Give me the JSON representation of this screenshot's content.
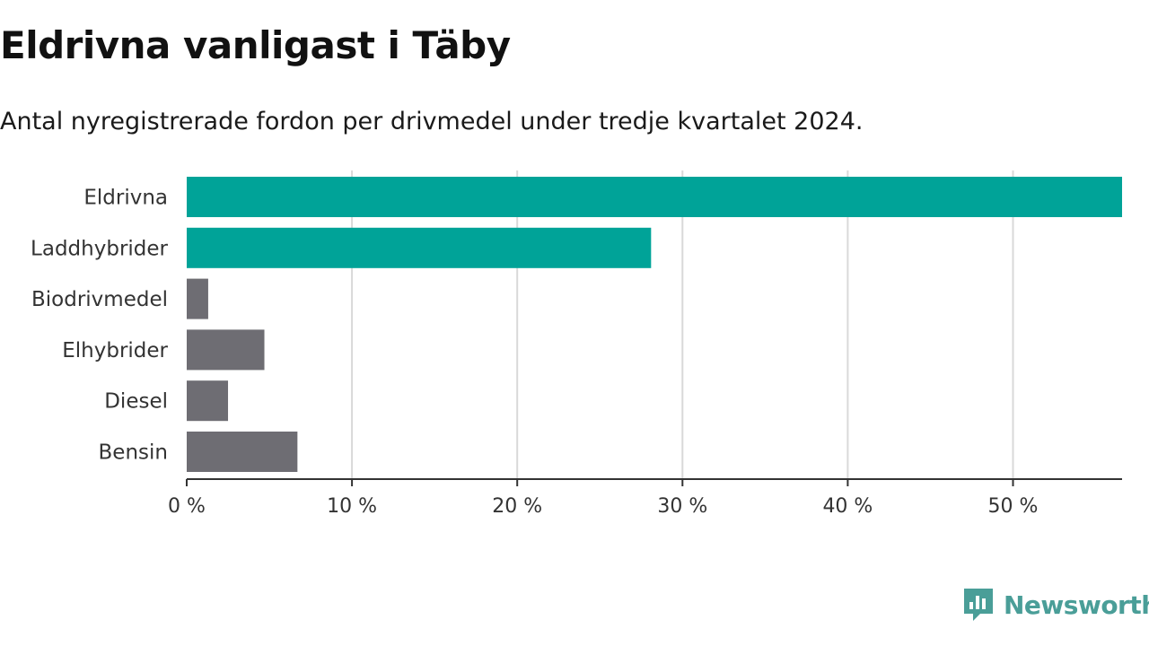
{
  "title": "Eldrivna vanligast i Täby",
  "subtitle": "Antal nyregistrerade fordon per drivmedel under tredje kvartalet 2024.",
  "brand": {
    "name": "Newsworthy",
    "icon": "newsworthy-logo-icon",
    "color": "#4a9e98"
  },
  "chart_data": {
    "type": "bar",
    "orientation": "horizontal",
    "categories": [
      "Eldrivna",
      "Laddhybrider",
      "Biodrivmedel",
      "Elhybrider",
      "Diesel",
      "Bensin"
    ],
    "values": [
      56.6,
      28.1,
      1.3,
      4.7,
      2.5,
      6.7
    ],
    "colors": [
      "#00a398",
      "#00a398",
      "#6e6d73",
      "#6e6d73",
      "#6e6d73",
      "#6e6d73"
    ],
    "xlim": [
      0,
      56.6
    ],
    "xticks": [
      0,
      10,
      20,
      30,
      40,
      50
    ],
    "xtick_labels": [
      "0 %",
      "10 %",
      "20 %",
      "30 %",
      "40 %",
      "50 %"
    ],
    "grid": true
  }
}
